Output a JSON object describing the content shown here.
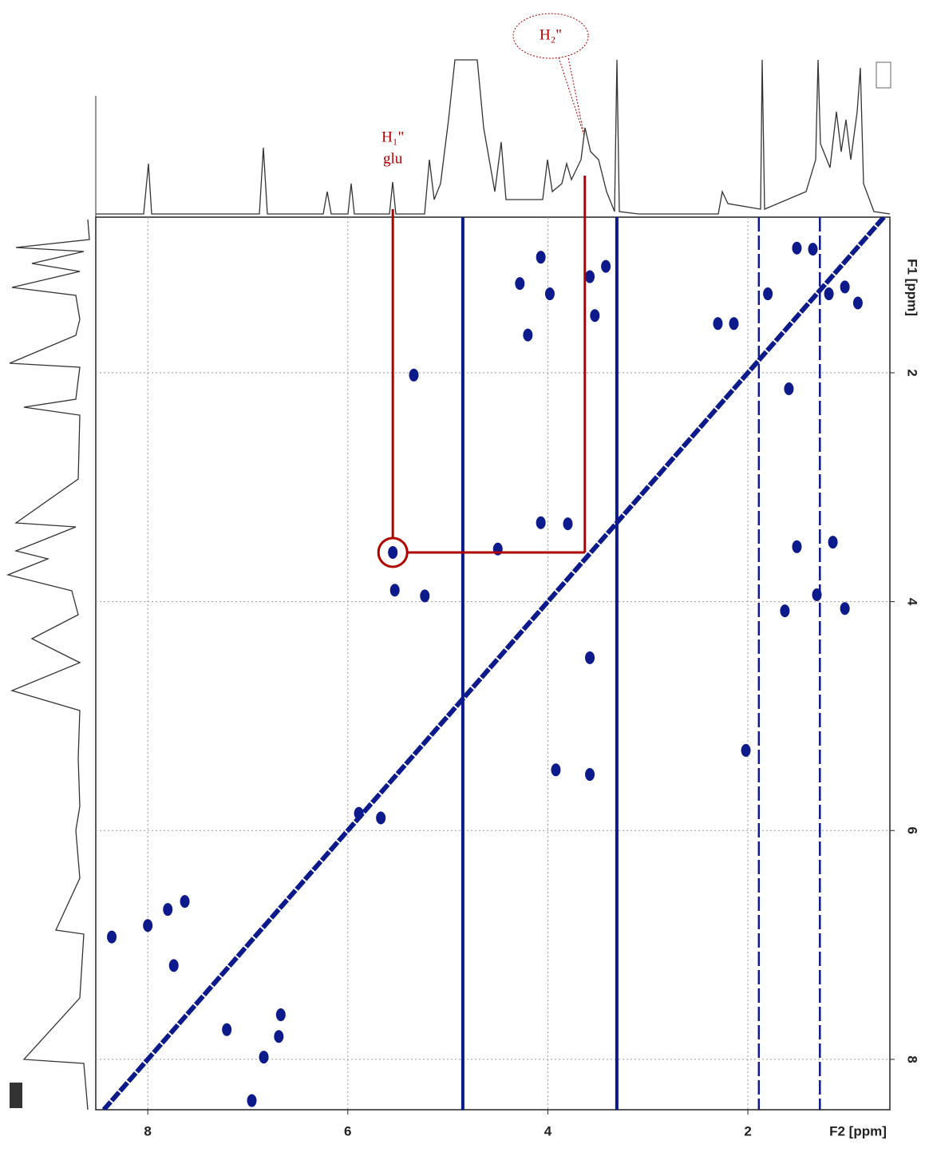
{
  "chart_data": {
    "type": "scatter",
    "xlabel": "F2 [ppm]",
    "ylabel": "F1 [ppm]",
    "xlim": [
      8.52,
      0.58
    ],
    "ylim": [
      0.64,
      8.44
    ],
    "xticks": [
      8,
      6,
      4,
      2
    ],
    "yticks": [
      2,
      4,
      6,
      8
    ],
    "grid": true,
    "color": "#0d1a8c",
    "x": [
      5.55,
      4.07,
      4.28,
      3.58,
      3.42,
      3.98,
      3.53,
      4.2,
      5.34,
      2.3,
      2.14,
      1.59,
      1.51,
      1.35,
      0.9,
      1.03,
      1.19,
      1.8,
      4.07,
      3.8,
      4.5,
      5.23,
      5.53,
      1.51,
      1.15,
      1.03,
      1.31,
      1.63,
      3.58,
      3.92,
      3.58,
      2.02,
      5.89,
      5.67,
      8.0,
      8.36,
      7.8,
      7.63,
      7.74,
      7.21,
      6.84,
      6.69,
      6.67,
      6.96
    ],
    "values": [
      3.57,
      0.99,
      1.22,
      1.16,
      1.07,
      1.31,
      1.5,
      1.67,
      2.02,
      1.57,
      1.57,
      2.14,
      0.91,
      0.92,
      1.39,
      1.25,
      1.31,
      1.31,
      3.31,
      3.32,
      3.54,
      3.95,
      3.9,
      3.52,
      3.48,
      4.06,
      3.94,
      4.08,
      4.49,
      5.47,
      5.51,
      5.3,
      5.85,
      5.89,
      6.83,
      6.93,
      6.69,
      6.62,
      7.18,
      7.74,
      7.98,
      7.8,
      7.61,
      8.36
    ],
    "x_lines": [
      4.85,
      3.31,
      1.89,
      1.28
    ],
    "annotations": [
      {
        "text": [
          "H₁\"",
          "glu"
        ],
        "x": 5.55
      },
      {
        "text": "H₂\"",
        "x": 3.63
      }
    ]
  }
}
